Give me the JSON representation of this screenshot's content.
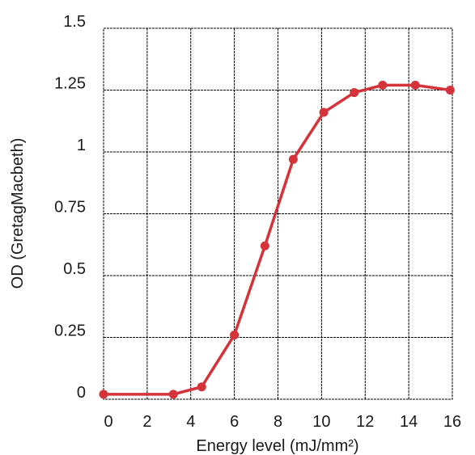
{
  "chart_data": {
    "type": "line",
    "title": "",
    "xlabel": "Energy level (mJ/mm²)",
    "ylabel": "OD (GretagMacbeth)",
    "xlim": [
      0,
      16
    ],
    "ylim": [
      0,
      1.5
    ],
    "x_ticks": [
      0,
      2,
      4,
      6,
      8,
      10,
      12,
      14,
      16
    ],
    "x_tick_labels": [
      "0",
      "2",
      "4",
      "6",
      "8",
      "10",
      "12",
      "14",
      "16"
    ],
    "y_ticks": [
      0,
      0.25,
      0.5,
      0.75,
      1,
      1.25,
      1.5
    ],
    "y_tick_labels": [
      "0",
      "0.25",
      "0.5",
      "0.75",
      "1",
      "1.25",
      "1.5"
    ],
    "grid": true,
    "legend": "none",
    "series": [
      {
        "color": "#d6323a",
        "x": [
          0,
          3.2,
          4.5,
          6.0,
          7.4,
          8.7,
          10.1,
          11.5,
          12.8,
          14.3,
          15.9
        ],
        "y": [
          0.02,
          0.02,
          0.05,
          0.26,
          0.62,
          0.97,
          1.16,
          1.24,
          1.27,
          1.27,
          1.25
        ]
      }
    ]
  }
}
